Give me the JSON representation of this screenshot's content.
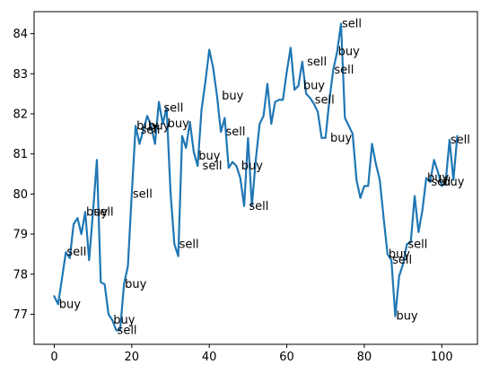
{
  "chart_data": {
    "type": "line",
    "title": "",
    "xlabel": "",
    "ylabel": "",
    "xlim": [
      -5.2,
      109.2
    ],
    "ylim": [
      76.25,
      84.55
    ],
    "xticks": [
      0,
      20,
      40,
      60,
      80,
      100
    ],
    "yticks": [
      77,
      78,
      79,
      80,
      81,
      82,
      83,
      84
    ],
    "grid": false,
    "line_color": "#1f77b4",
    "series": [
      {
        "x": [
          0,
          1,
          2,
          3,
          4,
          5,
          6,
          7,
          8,
          9,
          10,
          11,
          12,
          13,
          14,
          15,
          16,
          17,
          18,
          19,
          20,
          21,
          22,
          23,
          24,
          25,
          26,
          27,
          28,
          29,
          30,
          31,
          32,
          33,
          34,
          35,
          36,
          37,
          38,
          39,
          40,
          41,
          42,
          43,
          44,
          45,
          46,
          47,
          48,
          49,
          50,
          51,
          52,
          53,
          54,
          55,
          56,
          57,
          58,
          59,
          60,
          61,
          62,
          63,
          64,
          65,
          66,
          67,
          68,
          69,
          70,
          71,
          72,
          73,
          74,
          75,
          76,
          77,
          78,
          79,
          80,
          81,
          82,
          83,
          84,
          85,
          86,
          87,
          88,
          89,
          90,
          91,
          92,
          93,
          94,
          95,
          96,
          97,
          98,
          99,
          100,
          101,
          102,
          103,
          104
        ],
        "y": [
          77.45,
          77.25,
          77.9,
          78.55,
          78.4,
          79.25,
          79.4,
          79.0,
          79.55,
          78.35,
          79.55,
          80.85,
          77.8,
          77.75,
          77.0,
          76.85,
          76.6,
          76.6,
          77.75,
          78.2,
          80.0,
          81.7,
          81.25,
          81.6,
          81.95,
          81.7,
          81.25,
          82.3,
          81.75,
          82.15,
          80.05,
          78.75,
          78.45,
          81.45,
          81.15,
          81.8,
          81.05,
          80.7,
          82.1,
          82.8,
          83.6,
          83.15,
          82.45,
          81.55,
          81.9,
          80.65,
          80.8,
          80.7,
          80.4,
          79.7,
          81.4,
          79.7,
          80.85,
          81.75,
          81.95,
          82.75,
          81.75,
          82.3,
          82.35,
          82.35,
          83.05,
          83.65,
          82.6,
          82.7,
          83.3,
          82.5,
          82.4,
          82.25,
          82.05,
          81.4,
          81.4,
          82.35,
          83.1,
          83.55,
          84.25,
          81.9,
          81.7,
          81.5,
          80.35,
          79.9,
          80.2,
          80.2,
          81.25,
          80.75,
          80.35,
          79.4,
          78.5,
          78.35,
          76.95,
          77.95,
          78.25,
          78.75,
          78.8,
          79.95,
          79.05,
          79.6,
          80.4,
          80.3,
          80.85,
          80.55,
          80.2,
          80.3,
          81.35,
          80.35,
          81.45
        ]
      }
    ],
    "annotations": [
      {
        "text": "buy",
        "x": 1,
        "y": 77.25
      },
      {
        "text": "sell",
        "x": 3,
        "y": 78.55
      },
      {
        "text": "buy",
        "x": 8,
        "y": 79.55
      },
      {
        "text": "sell",
        "x": 10,
        "y": 79.55
      },
      {
        "text": "buy",
        "x": 15,
        "y": 76.85
      },
      {
        "text": "sell",
        "x": 16,
        "y": 76.6
      },
      {
        "text": "buy",
        "x": 18,
        "y": 77.75
      },
      {
        "text": "sell",
        "x": 20,
        "y": 80.0
      },
      {
        "text": "buy",
        "x": 21,
        "y": 81.7
      },
      {
        "text": "sell",
        "x": 22,
        "y": 81.6
      },
      {
        "text": "buy",
        "x": 24,
        "y": 81.7
      },
      {
        "text": "sell",
        "x": 28,
        "y": 82.15
      },
      {
        "text": "buy",
        "x": 29,
        "y": 81.75
      },
      {
        "text": "sell",
        "x": 32,
        "y": 78.75
      },
      {
        "text": "buy",
        "x": 37,
        "y": 80.95
      },
      {
        "text": "sell",
        "x": 38,
        "y": 80.7
      },
      {
        "text": "buy",
        "x": 43,
        "y": 82.45
      },
      {
        "text": "sell",
        "x": 44,
        "y": 81.55
      },
      {
        "text": "buy",
        "x": 48,
        "y": 80.7
      },
      {
        "text": "sell",
        "x": 50,
        "y": 79.7
      },
      {
        "text": "sell",
        "x": 65,
        "y": 83.3
      },
      {
        "text": "buy",
        "x": 64,
        "y": 82.7
      },
      {
        "text": "sell",
        "x": 67,
        "y": 82.35
      },
      {
        "text": "buy",
        "x": 71,
        "y": 81.4
      },
      {
        "text": "sell",
        "x": 72,
        "y": 83.1
      },
      {
        "text": "buy",
        "x": 73,
        "y": 83.55
      },
      {
        "text": "sell",
        "x": 74,
        "y": 84.25
      },
      {
        "text": "buy",
        "x": 86,
        "y": 78.5
      },
      {
        "text": "sell",
        "x": 87,
        "y": 78.35
      },
      {
        "text": "buy",
        "x": 88,
        "y": 76.95
      },
      {
        "text": "sell",
        "x": 91,
        "y": 78.75
      },
      {
        "text": "buy",
        "x": 96,
        "y": 80.4
      },
      {
        "text": "sell",
        "x": 97,
        "y": 80.3
      },
      {
        "text": "buy",
        "x": 100,
        "y": 80.3
      },
      {
        "text": "sell",
        "x": 102,
        "y": 81.35
      }
    ]
  }
}
